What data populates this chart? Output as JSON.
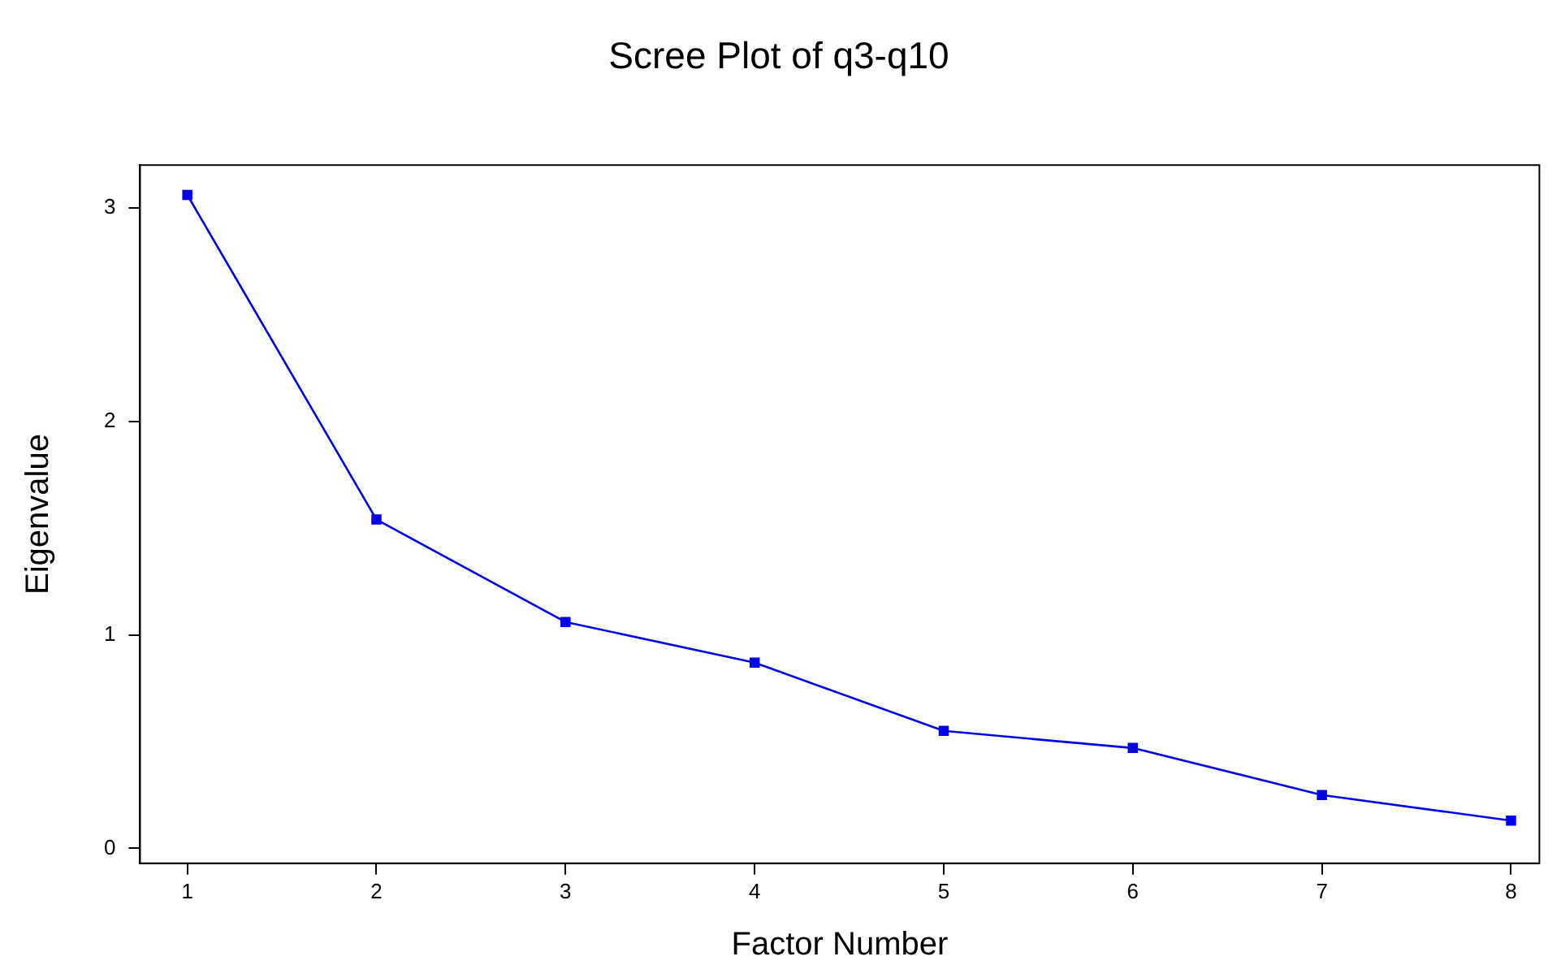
{
  "chart_data": {
    "type": "line",
    "title": "Scree Plot of q3-q10",
    "xlabel": "Factor Number",
    "ylabel": "Eigenvalue",
    "x": [
      1,
      2,
      3,
      4,
      5,
      6,
      7,
      8
    ],
    "series": [
      {
        "color": "#0000ee",
        "values": [
          3.06,
          1.54,
          1.06,
          0.87,
          0.55,
          0.47,
          0.25,
          0.13
        ]
      }
    ],
    "xlim": [
      0.75,
      8.15
    ],
    "xticks": [
      1,
      2,
      3,
      4,
      5,
      6,
      7,
      8
    ],
    "ylim": [
      -0.07,
      3.2
    ],
    "yticks": [
      0,
      1,
      2,
      3
    ],
    "grid": false,
    "legend": false,
    "marker": "square",
    "line_style": "solid"
  }
}
